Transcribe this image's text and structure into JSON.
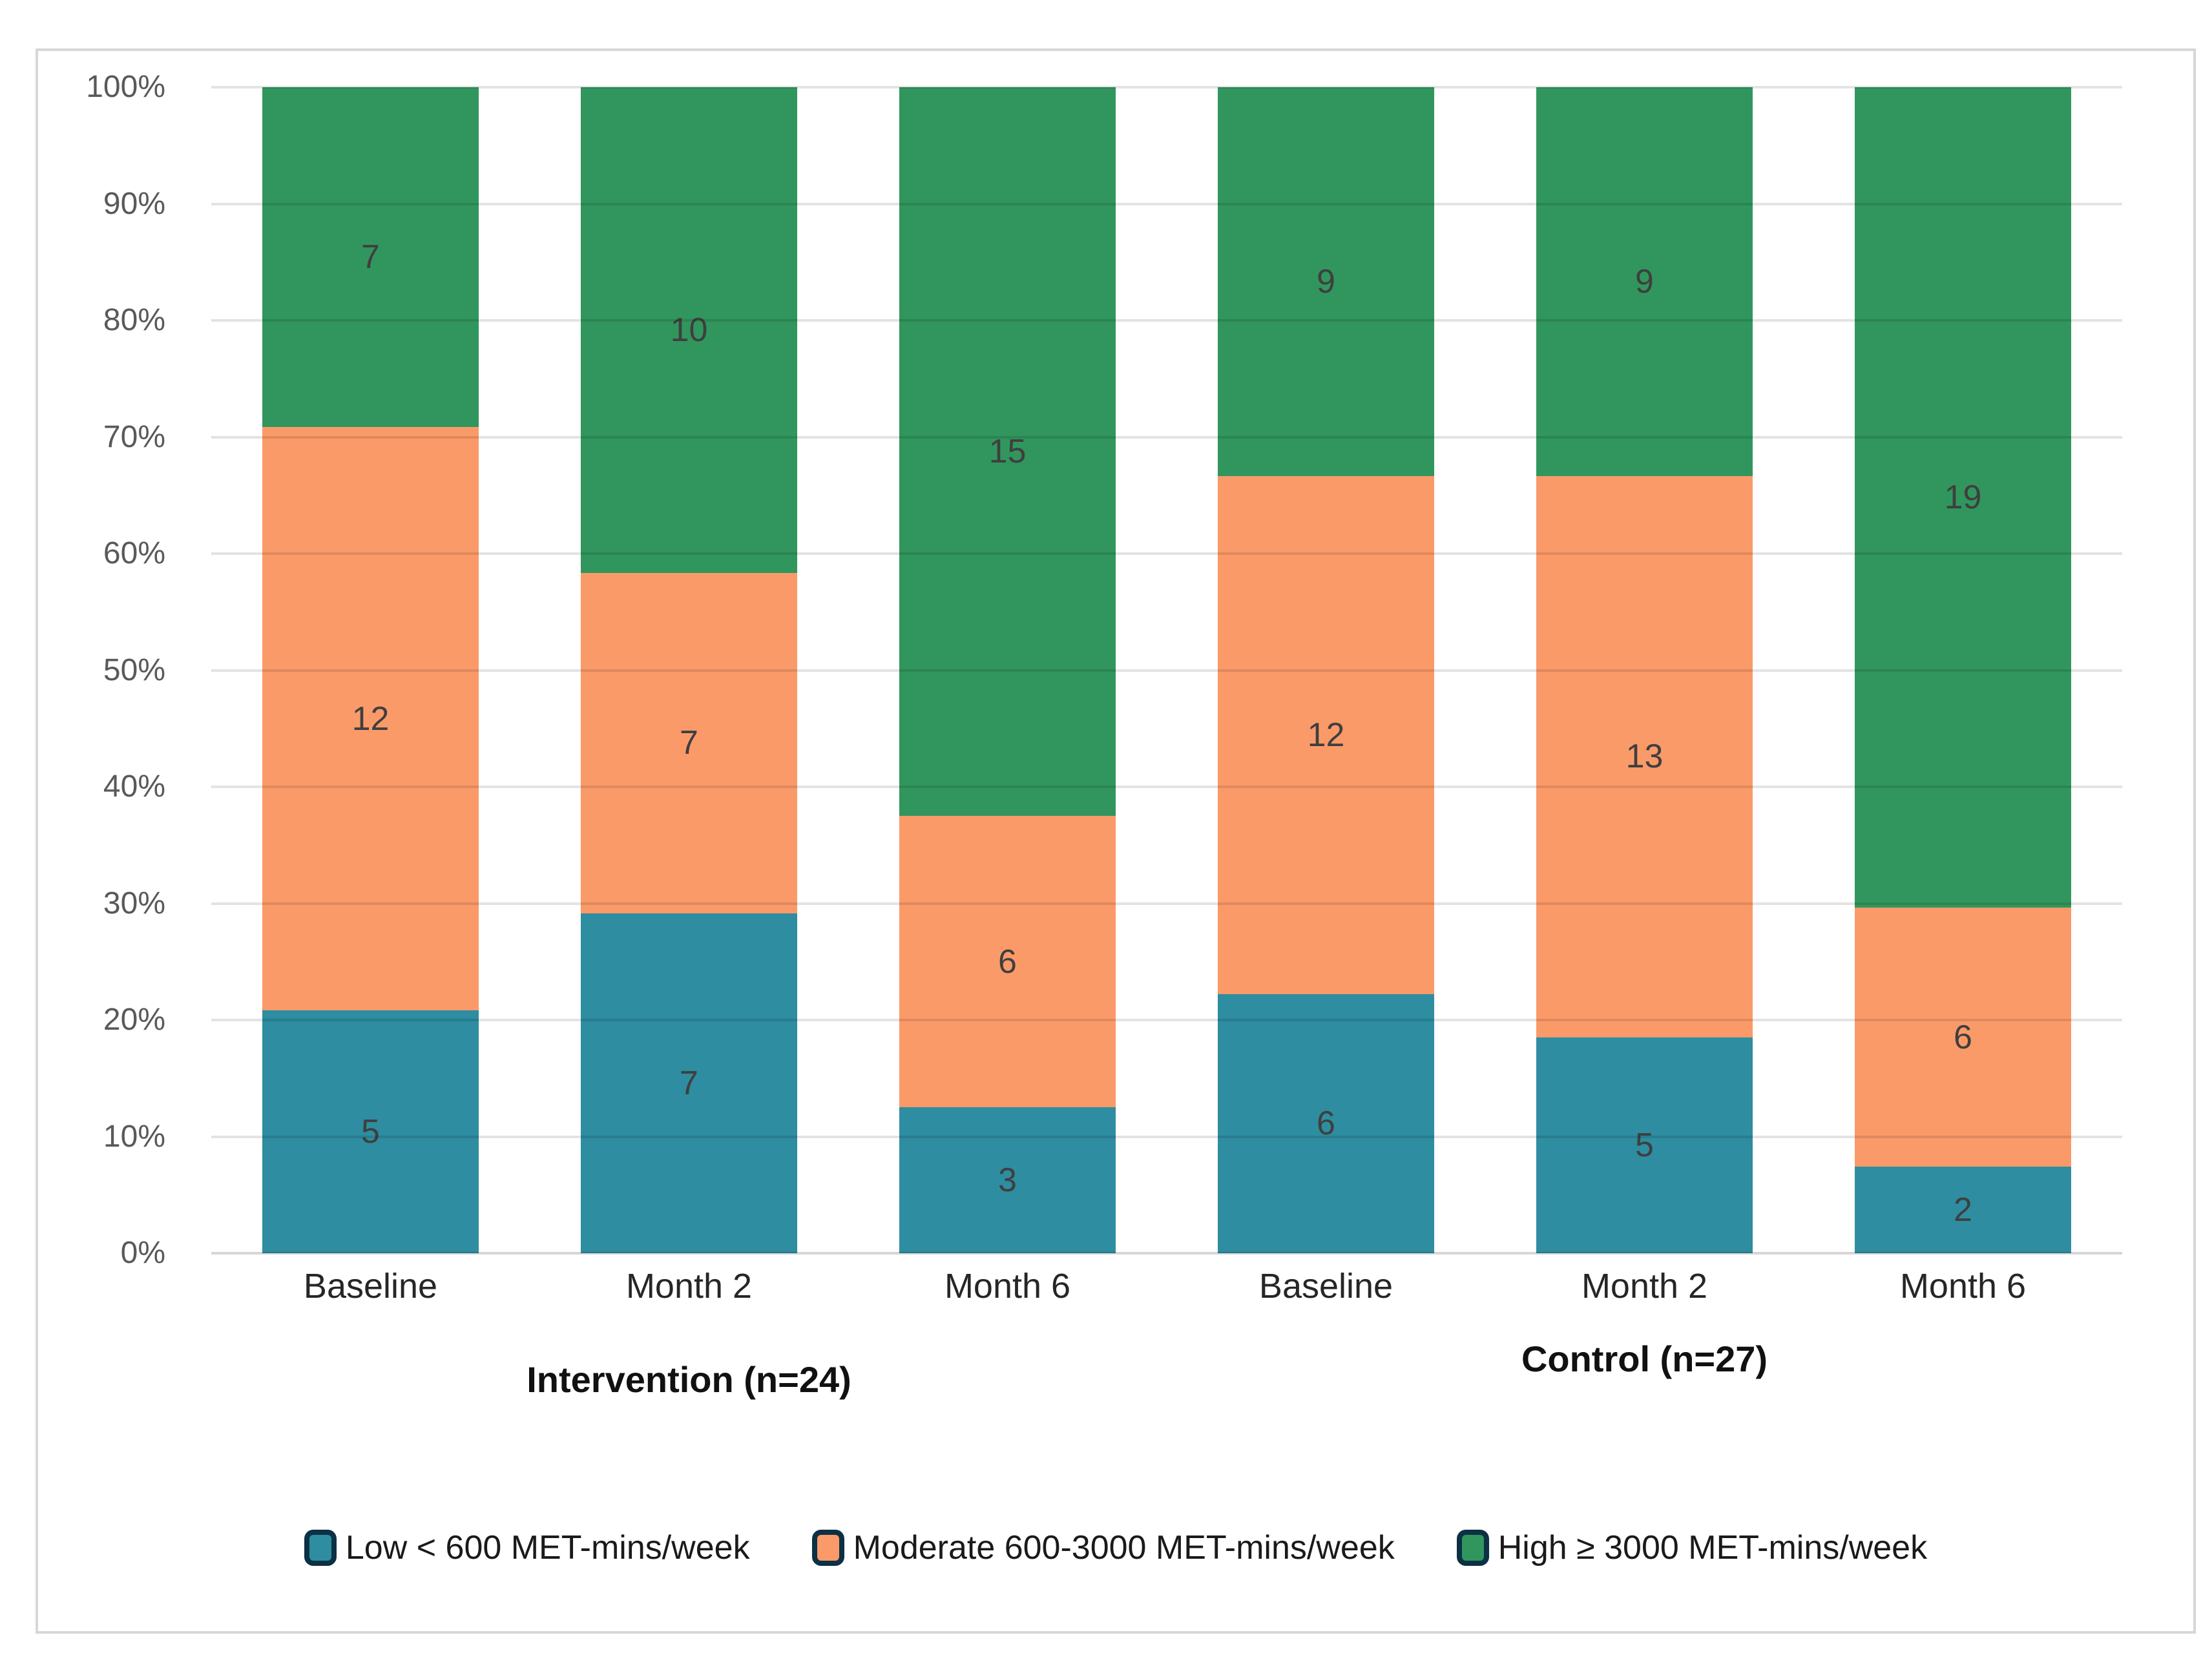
{
  "chart_data": {
    "type": "bar",
    "variant": "stacked-100-percent-column",
    "title": "",
    "xlabel": "",
    "ylabel": "",
    "ylim": [
      0,
      100
    ],
    "grid": true,
    "legend_position": "bottom",
    "y_ticks": [
      "0%",
      "10%",
      "20%",
      "30%",
      "40%",
      "50%",
      "60%",
      "70%",
      "80%",
      "90%",
      "100%"
    ],
    "groups": [
      {
        "label": "Intervention (n=24)",
        "categories": [
          "Baseline",
          "Month 2",
          "Month 6"
        ]
      },
      {
        "label": "Control (n=27)",
        "categories": [
          "Baseline",
          "Month 2",
          "Month 6"
        ]
      }
    ],
    "categories": [
      "Baseline",
      "Month 2",
      "Month 6",
      "Baseline",
      "Month 2",
      "Month 6"
    ],
    "column_totals": [
      24,
      24,
      24,
      27,
      27,
      27
    ],
    "series": [
      {
        "name": "Low < 600 MET-mins/week",
        "color": "#2E8DA0",
        "values": [
          5,
          7,
          3,
          6,
          5,
          2
        ]
      },
      {
        "name": "Moderate 600-3000 MET-mins/week",
        "color": "#FB9A69",
        "values": [
          12,
          7,
          6,
          12,
          13,
          6
        ]
      },
      {
        "name": "High ≥ 3000 MET-mins/week",
        "color": "#31965D",
        "values": [
          7,
          10,
          15,
          9,
          9,
          19
        ]
      }
    ],
    "colors": {
      "legend_swatch_border": "#0C3044",
      "gridline": "#D9D9D9",
      "tick_text": "#595959",
      "category_text": "#262626",
      "bar_label_text": "#3F3F3F",
      "frame_border": "#D7D7D7"
    }
  }
}
